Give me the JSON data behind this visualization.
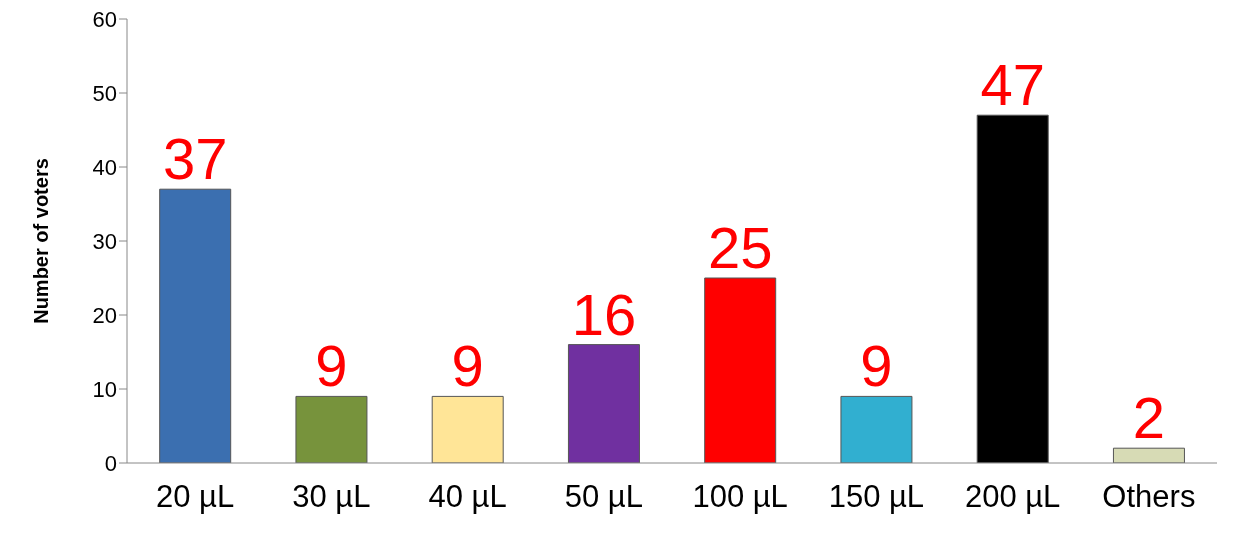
{
  "chart_data": {
    "type": "bar",
    "ylabel": "Number of voters",
    "categories": [
      "20 µL",
      "30 µL",
      "40 µL",
      "50 µL",
      "100 µL",
      "150 µL",
      "200 µL",
      "Others"
    ],
    "values": [
      37,
      9,
      9,
      16,
      25,
      9,
      47,
      2
    ],
    "colors": [
      "#3b6fb0",
      "#77933c",
      "#ffe597",
      "#7030a0",
      "#ff0000",
      "#31afd0",
      "#000000",
      "#d7dbb5"
    ],
    "ylim": [
      0,
      60
    ],
    "yticks": [
      0,
      10,
      20,
      30,
      40,
      50,
      60
    ],
    "grid": false,
    "data_labels": true
  }
}
